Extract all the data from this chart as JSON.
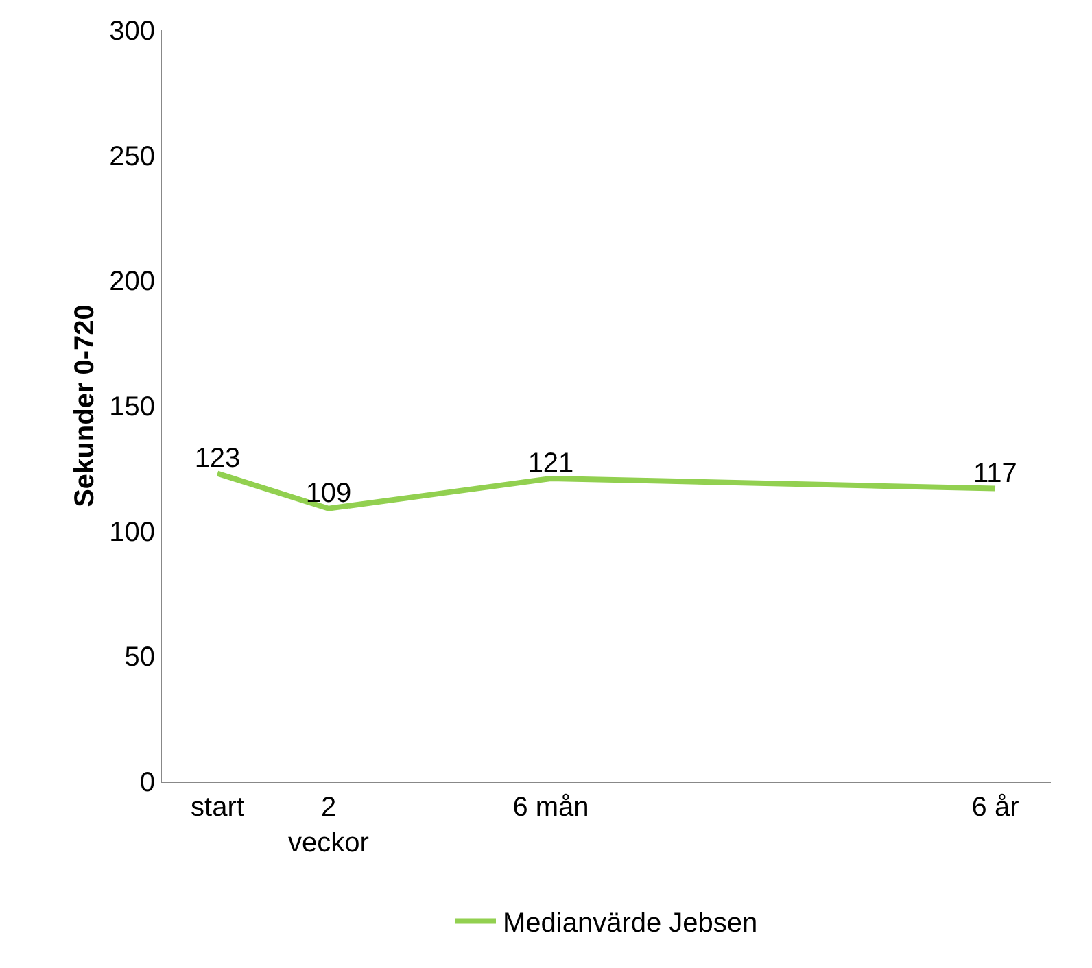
{
  "chart_data": {
    "type": "line",
    "ylabel": "Sekunder 0-720",
    "categories": [
      "start",
      "2\nveckor",
      null,
      "6 mån",
      null,
      null,
      null,
      "6 år"
    ],
    "series": [
      {
        "name": "Medianvärde Jebsen",
        "color": "#92d050",
        "values": [
          123,
          109,
          115,
          121,
          120,
          119,
          118,
          117
        ],
        "value_labels": [
          "123",
          "109",
          null,
          "121",
          null,
          null,
          null,
          "117"
        ]
      }
    ],
    "ylim": [
      0,
      300
    ],
    "yticks": [
      0,
      50,
      100,
      150,
      200,
      250,
      300
    ],
    "grid": false,
    "legend": "bottom",
    "marker": "none",
    "line_style": "solid"
  }
}
